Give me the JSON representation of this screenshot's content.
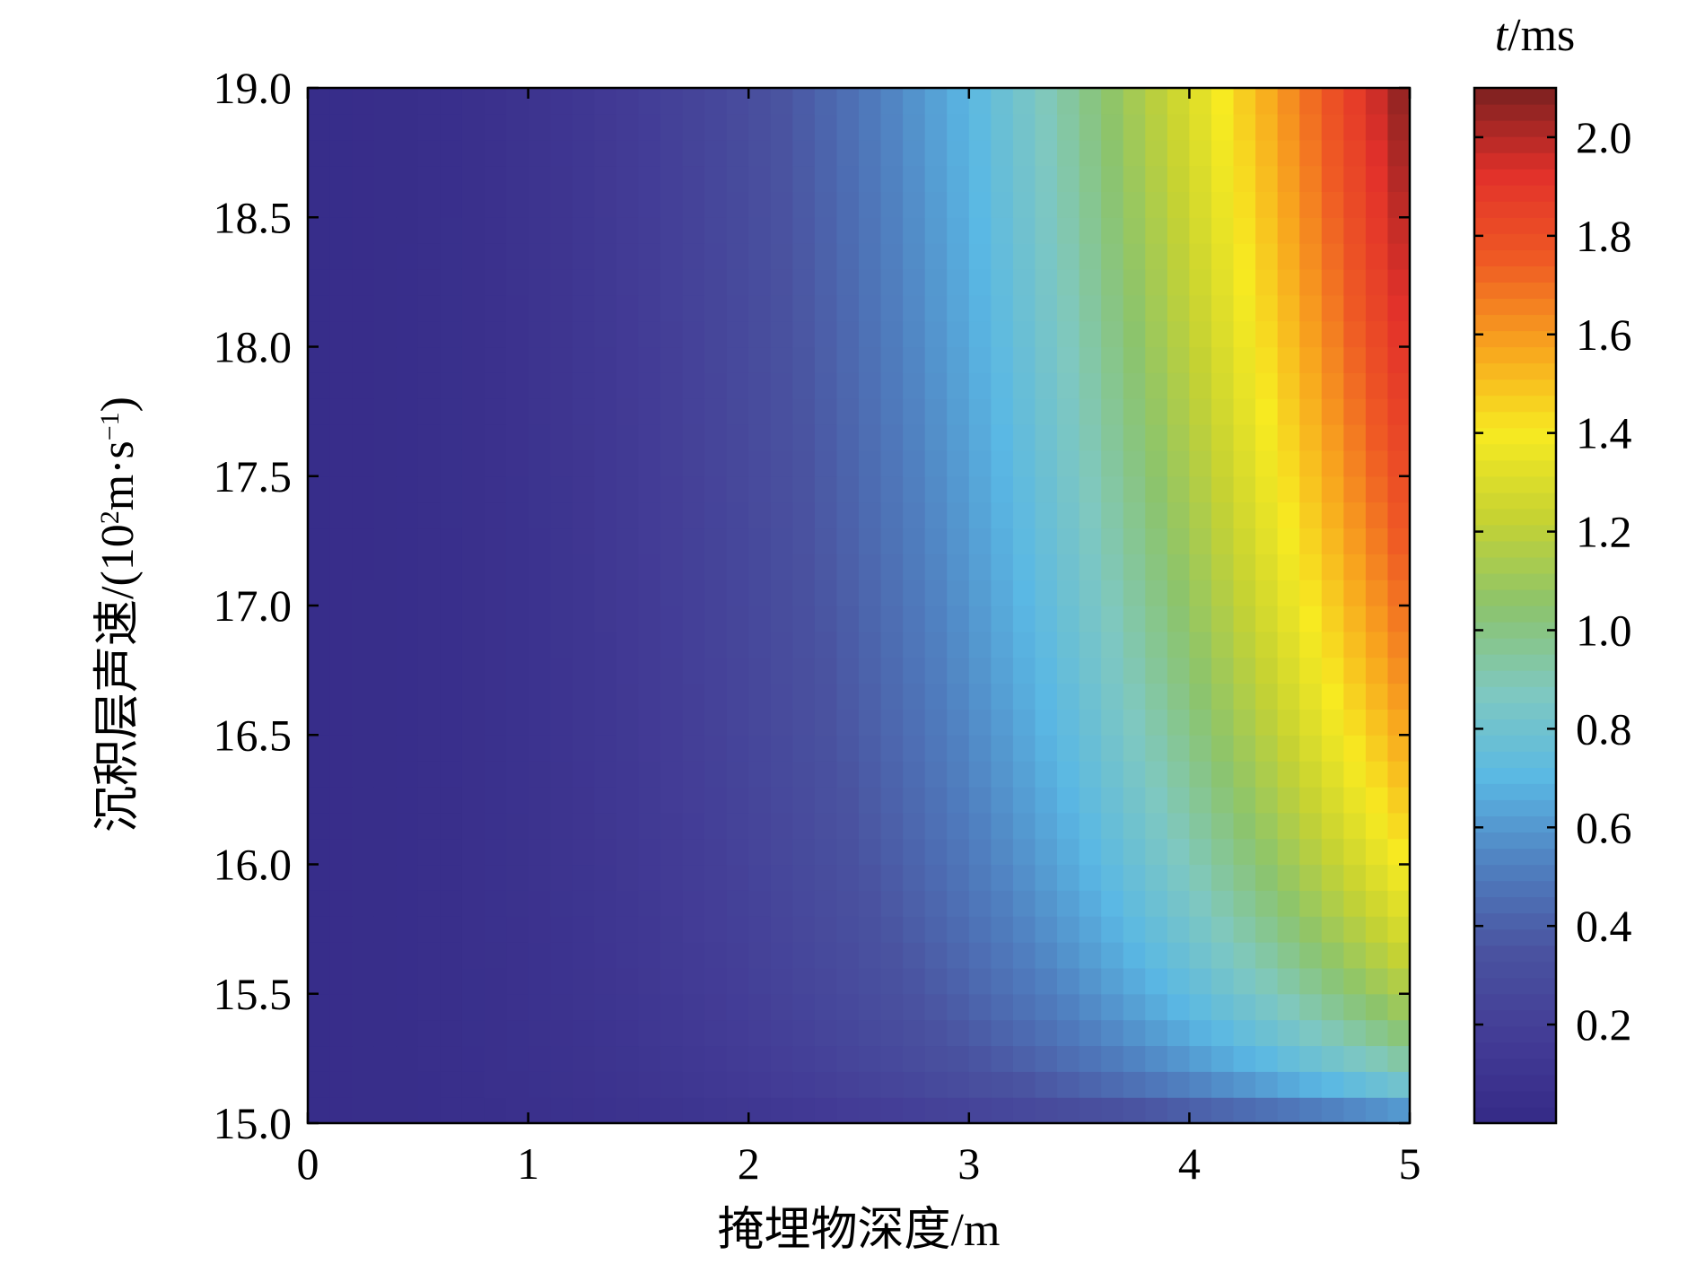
{
  "chart_data": {
    "type": "heatmap",
    "title": "",
    "xlabel": "掩埋物深度/m",
    "ylabel_main": "沉积层声速/(10",
    "ylabel_sup1": "2",
    "ylabel_mid": "m·s",
    "ylabel_sup2": "−1",
    "ylabel_end": ")",
    "x_range": [
      0,
      5
    ],
    "y_range": [
      15.0,
      19.0
    ],
    "x_ticks": [
      "0",
      "1",
      "2",
      "3",
      "4",
      "5"
    ],
    "y_ticks": [
      "15.0",
      "15.5",
      "16.0",
      "16.5",
      "17.0",
      "17.5",
      "18.0",
      "18.5",
      "19.0"
    ],
    "colorbar": {
      "label_italic": "t",
      "label_unit": "/ms",
      "range": [
        0,
        2.1
      ],
      "ticks": [
        "0.2",
        "0.4",
        "0.6",
        "0.8",
        "1.0",
        "1.2",
        "1.4",
        "1.6",
        "1.8",
        "2.0"
      ]
    },
    "grid": {
      "x_cells": 50,
      "y_cells": 40,
      "model": "value ≈ 2.1 · (x/5)^2.2 · ((v−15)/4)^0.3 + small offset; min ≈ 0.02 ms at x=0, max ≈ 2.1 ms at x=5, v=19.0"
    },
    "colormap": [
      "#352a87",
      "#433c96",
      "#4a53a0",
      "#5080c0",
      "#5ab8e4",
      "#7fc8c0",
      "#8cc46c",
      "#c5d233",
      "#f7ea21",
      "#f8a51e",
      "#ef5a24",
      "#e2312a",
      "#7a2020"
    ]
  }
}
